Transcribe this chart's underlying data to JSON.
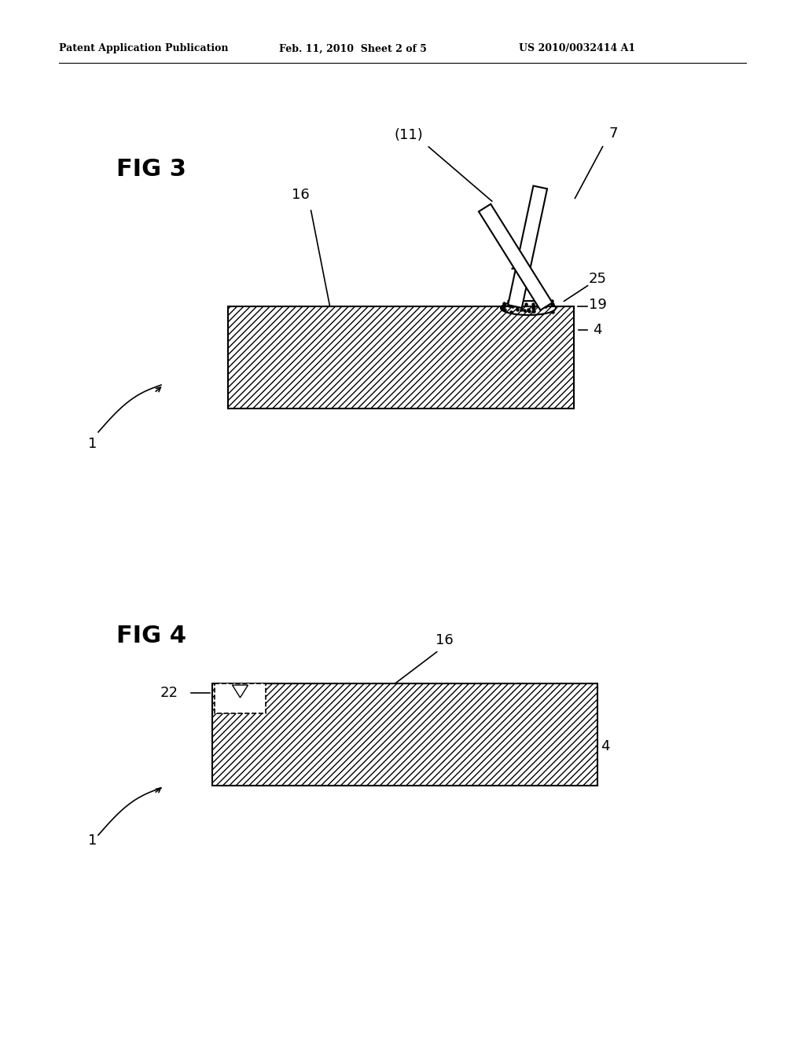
{
  "bg_color": "#ffffff",
  "header_text": "Patent Application Publication",
  "header_date": "Feb. 11, 2010  Sheet 2 of 5",
  "header_patent": "US 2010/0032414 A1",
  "fig3_label": "FIG 3",
  "fig4_label": "FIG 4",
  "line_color": "#000000"
}
